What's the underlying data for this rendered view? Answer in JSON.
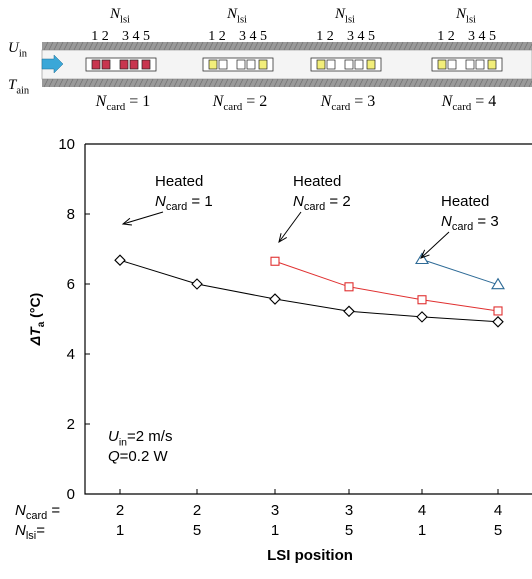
{
  "schematic": {
    "lsi_label_main": "N",
    "lsi_label_sub": "lsi",
    "lsi_numbers": [
      "1 2",
      "3 4 5"
    ],
    "inlet_velocity_main": "U",
    "inlet_velocity_sub": "in",
    "inlet_temp_main": "T",
    "inlet_temp_sub": "ain",
    "cards": [
      {
        "label_main": "N",
        "label_sub": "card",
        "label_value": "= 1",
        "state": "heated"
      },
      {
        "label_main": "N",
        "label_sub": "card",
        "label_value": "= 2",
        "state": "first-row-heated"
      },
      {
        "label_main": "N",
        "label_sub": "card",
        "label_value": "= 3",
        "state": "first-row-heated"
      },
      {
        "label_main": "N",
        "label_sub": "card",
        "label_value": "= 4",
        "state": "first-row-heated"
      }
    ],
    "colors": {
      "heated": "#c8364f",
      "partial": "#f2ee7a",
      "chip": "#ffffff",
      "arrow": "#3aa7d8",
      "band": "#9a9a9a"
    }
  },
  "chart_data": {
    "type": "line",
    "ylabel_main": "ΔT",
    "ylabel_sub": "a",
    "ylabel_unit": " (°C)",
    "xlabel": "LSI position",
    "ylim": [
      0,
      10
    ],
    "yticks": [
      "0",
      "2",
      "4",
      "6",
      "8",
      "10"
    ],
    "categories": [
      {
        "ncard": "2",
        "nlsi": "1"
      },
      {
        "ncard": "2",
        "nlsi": "5"
      },
      {
        "ncard": "3",
        "nlsi": "1"
      },
      {
        "ncard": "3",
        "nlsi": "5"
      },
      {
        "ncard": "4",
        "nlsi": "1"
      },
      {
        "ncard": "4",
        "nlsi": "5"
      }
    ],
    "row_labels": {
      "ncard_main": "N",
      "ncard_sub": "card",
      "ncard_eq": " =",
      "nlsi_main": "N",
      "nlsi_sub": "lsi",
      "nlsi_eq": "="
    },
    "series": [
      {
        "marker": "diamond",
        "color": "#000000",
        "x": [
          0,
          1,
          2,
          3,
          4,
          5
        ],
        "y": [
          6.68,
          6.0,
          5.57,
          5.22,
          5.06,
          4.92
        ]
      },
      {
        "marker": "square",
        "color": "#e03030",
        "x": [
          2,
          3,
          4,
          5
        ],
        "y": [
          6.65,
          5.92,
          5.55,
          5.23
        ]
      },
      {
        "marker": "triangle",
        "color": "#2d6a96",
        "x": [
          4,
          5
        ],
        "y": [
          6.7,
          5.98
        ]
      }
    ],
    "annotations": [
      {
        "line1": "Heated",
        "label_main": "N",
        "label_sub": "card",
        "label_value": " = 1",
        "target_series": 0
      },
      {
        "line1": "Heated",
        "label_main": "N",
        "label_sub": "card",
        "label_value": " = 2",
        "target_series": 1
      },
      {
        "line1": "Heated",
        "label_main": "N",
        "label_sub": "card",
        "label_value": " = 3",
        "target_series": 2
      }
    ],
    "conditions": [
      {
        "main": "U",
        "sub": "in",
        "rest": "=2 m/s"
      },
      {
        "main": "Q",
        "sub": "",
        "rest": "=0.2 W"
      }
    ]
  }
}
